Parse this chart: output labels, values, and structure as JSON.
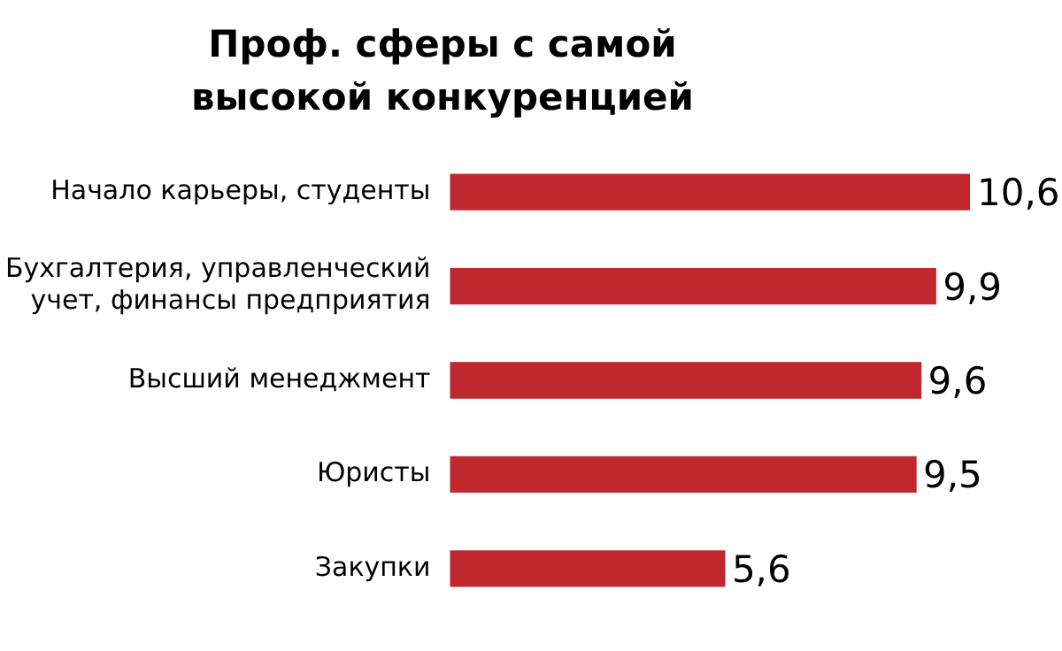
{
  "chart_data": {
    "type": "bar",
    "orientation": "horizontal",
    "title": "Проф. сферы с самой высокой конкуренцией",
    "categories": [
      "Начало карьеры, студенты",
      "Бухгалтерия, управленческий учет, финансы предприятия",
      "Высший менеджмент",
      "Юристы",
      "Закупки"
    ],
    "values": [
      10.6,
      9.9,
      9.6,
      9.5,
      5.6
    ],
    "value_labels": [
      "10,6",
      "9,9",
      "9,6",
      "9,5",
      "5,6"
    ],
    "color": "#c0282d",
    "legend": false
  }
}
